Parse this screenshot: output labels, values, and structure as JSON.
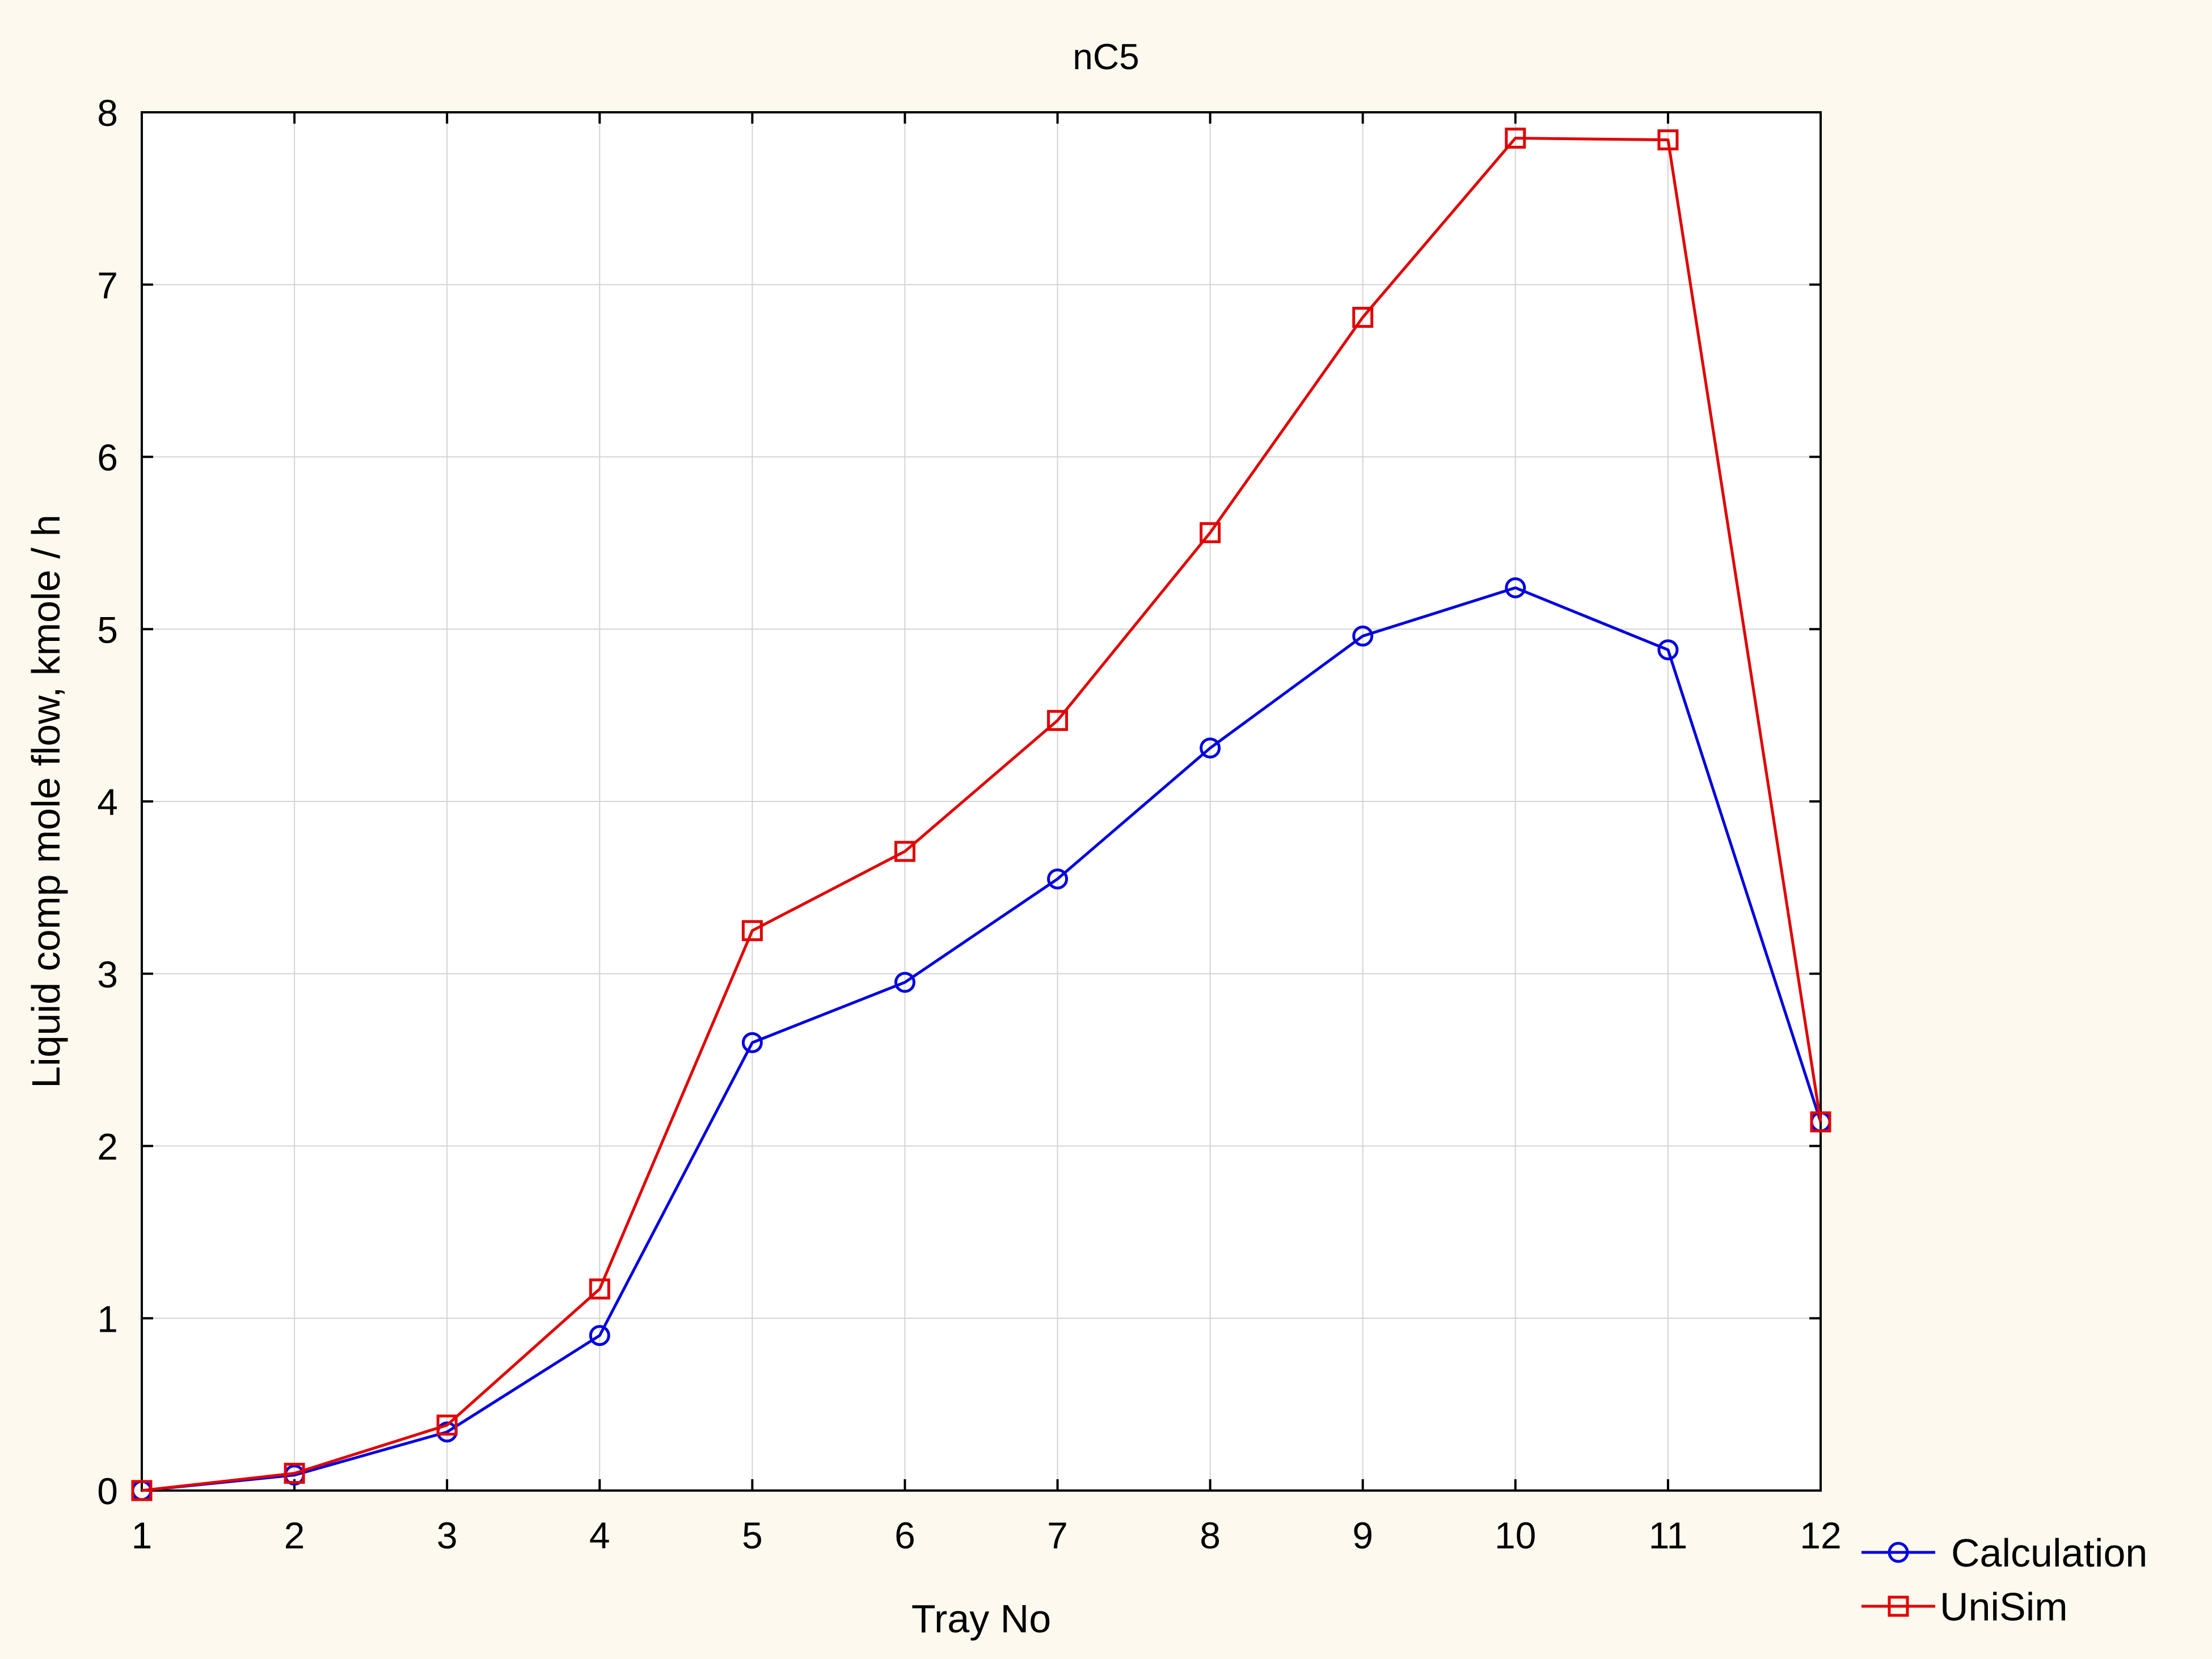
{
  "chart_data": {
    "type": "line",
    "title": "nC5",
    "xlabel": "Tray No",
    "ylabel": "Liquid comp mole flow, kmole / h",
    "x": [
      1,
      2,
      3,
      4,
      5,
      6,
      7,
      8,
      9,
      10,
      11,
      12
    ],
    "xlim": [
      1,
      12
    ],
    "ylim": [
      0,
      8
    ],
    "xticks": [
      "1",
      "2",
      "3",
      "4",
      "5",
      "6",
      "7",
      "8",
      "9",
      "10",
      "11",
      "12"
    ],
    "yticks": [
      "0",
      "1",
      "2",
      "3",
      "4",
      "5",
      "6",
      "7",
      "8"
    ],
    "grid": true,
    "legend_position": "bottom-right outside",
    "series": [
      {
        "name": "Calculation",
        "color": "#0000e0",
        "marker": "circle",
        "values": [
          0.0,
          0.09,
          0.34,
          0.9,
          2.6,
          2.95,
          3.55,
          4.31,
          4.96,
          5.24,
          4.88,
          2.14
        ]
      },
      {
        "name": "UniSim",
        "color": "#e00000",
        "marker": "square",
        "values": [
          0.0,
          0.1,
          0.38,
          1.17,
          3.25,
          3.71,
          4.47,
          5.56,
          6.81,
          7.85,
          7.84,
          2.14
        ]
      }
    ]
  }
}
